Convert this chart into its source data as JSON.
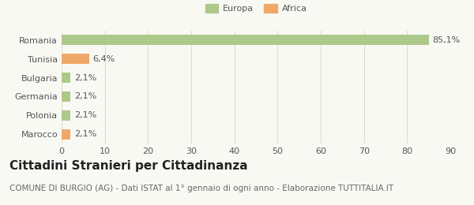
{
  "categories": [
    "Romania",
    "Tunisia",
    "Bulgaria",
    "Germania",
    "Polonia",
    "Marocco"
  ],
  "values": [
    85.1,
    6.4,
    2.1,
    2.1,
    2.1,
    2.1
  ],
  "labels": [
    "85,1%",
    "6,4%",
    "2,1%",
    "2,1%",
    "2,1%",
    "2,1%"
  ],
  "colors": [
    "#adc98a",
    "#f0a868",
    "#adc98a",
    "#adc98a",
    "#adc98a",
    "#f0a868"
  ],
  "legend": [
    {
      "label": "Europa",
      "color": "#adc98a"
    },
    {
      "label": "Africa",
      "color": "#f0a868"
    }
  ],
  "xlim": [
    0,
    90
  ],
  "xticks": [
    0,
    10,
    20,
    30,
    40,
    50,
    60,
    70,
    80,
    90
  ],
  "title": "Cittadini Stranieri per Cittadinanza",
  "subtitle": "COMUNE DI BURGIO (AG) - Dati ISTAT al 1° gennaio di ogni anno - Elaborazione TUTTITALIA.IT",
  "background_color": "#f9f9f4",
  "grid_color": "#ddddcc",
  "bar_height": 0.55,
  "label_fontsize": 8,
  "tick_fontsize": 8,
  "title_fontsize": 11,
  "subtitle_fontsize": 7.5
}
